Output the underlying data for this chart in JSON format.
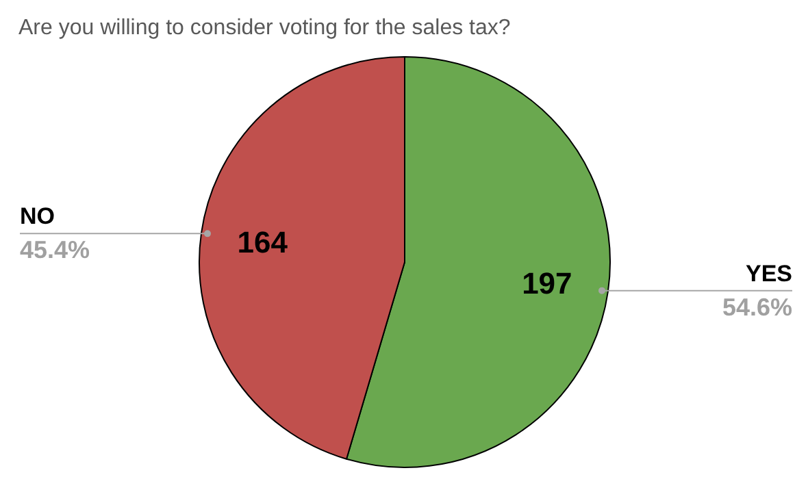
{
  "chart_data": {
    "type": "pie",
    "title": "Are you willing to consider voting for the sales tax?",
    "categories": [
      "YES",
      "NO"
    ],
    "values": [
      197,
      164
    ],
    "colors": [
      "#6aa84f",
      "#c0504d"
    ],
    "data_labels": true,
    "annotations": [
      "54.6%",
      "45.4%"
    ]
  }
}
